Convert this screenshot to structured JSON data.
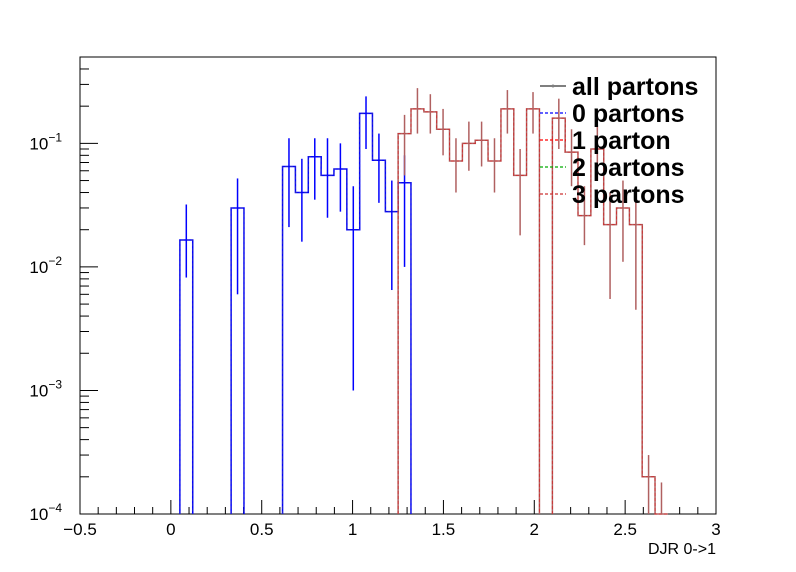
{
  "chart_data": {
    "type": "line",
    "title": "",
    "xlabel": "DJR 0->1",
    "ylabel": "",
    "xlim": [
      -0.5,
      3
    ],
    "ylim": [
      0.0001,
      0.5
    ],
    "yscale": "log",
    "bin_width": 0.0707,
    "x_ticks": [
      "−0.5",
      "0",
      "0.5",
      "1",
      "1.5",
      "2",
      "2.5",
      "3"
    ],
    "y_ticks": [
      {
        "mantissa": "10",
        "exp": "−4",
        "value": 0.0001
      },
      {
        "mantissa": "10",
        "exp": "−3",
        "value": 0.001
      },
      {
        "mantissa": "10",
        "exp": "−2",
        "value": 0.01
      },
      {
        "mantissa": "10",
        "exp": "−1",
        "value": 0.1
      }
    ],
    "legend_position": "top-right",
    "legend": [
      {
        "name": "all partons",
        "color": "#7f7f7f",
        "style": "solid"
      },
      {
        "name": "0 partons",
        "color": "#0000ff",
        "style": "dashed"
      },
      {
        "name": "1 parton",
        "color": "#ff0000",
        "style": "dashed"
      },
      {
        "name": "2 partons",
        "color": "#00aa00",
        "style": "dashed"
      },
      {
        "name": "3 partons",
        "color": "#cc3333",
        "style": "dashed"
      }
    ],
    "series": [
      {
        "name": "0 partons",
        "color": "#0000ff",
        "points": [
          {
            "x": 0.085,
            "y": 0.0165,
            "lo": 0.0082,
            "hi": 0.032
          },
          {
            "x": 0.367,
            "y": 0.03,
            "lo": 0.006,
            "hi": 0.052
          },
          {
            "x": 0.65,
            "y": 0.065,
            "lo": 0.021,
            "hi": 0.11
          },
          {
            "x": 0.721,
            "y": 0.04,
            "lo": 0.016,
            "hi": 0.075
          },
          {
            "x": 0.792,
            "y": 0.078,
            "lo": 0.035,
            "hi": 0.11
          },
          {
            "x": 0.862,
            "y": 0.055,
            "lo": 0.025,
            "hi": 0.11
          },
          {
            "x": 0.933,
            "y": 0.062,
            "lo": 0.028,
            "hi": 0.1
          },
          {
            "x": 1.004,
            "y": 0.02,
            "lo": 0.001,
            "hi": 0.045
          },
          {
            "x": 1.074,
            "y": 0.175,
            "lo": 0.09,
            "hi": 0.24
          },
          {
            "x": 1.145,
            "y": 0.073,
            "lo": 0.033,
            "hi": 0.12
          },
          {
            "x": 1.216,
            "y": 0.028,
            "lo": 0.0065,
            "hi": 0.05
          },
          {
            "x": 1.286,
            "y": 0.048,
            "lo": 0.01,
            "hi": 0.08
          }
        ]
      },
      {
        "name": "all partons",
        "color": "#b06060",
        "points": [
          {
            "x": 1.286,
            "y": 0.12,
            "lo": 0.055,
            "hi": 0.17
          },
          {
            "x": 1.357,
            "y": 0.19,
            "lo": 0.12,
            "hi": 0.28
          },
          {
            "x": 1.428,
            "y": 0.18,
            "lo": 0.12,
            "hi": 0.25
          },
          {
            "x": 1.498,
            "y": 0.13,
            "lo": 0.08,
            "hi": 0.19
          },
          {
            "x": 1.569,
            "y": 0.072,
            "lo": 0.04,
            "hi": 0.11
          },
          {
            "x": 1.64,
            "y": 0.1,
            "lo": 0.06,
            "hi": 0.15
          },
          {
            "x": 1.71,
            "y": 0.106,
            "lo": 0.065,
            "hi": 0.15
          },
          {
            "x": 1.781,
            "y": 0.072,
            "lo": 0.04,
            "hi": 0.11
          },
          {
            "x": 1.852,
            "y": 0.19,
            "lo": 0.12,
            "hi": 0.27
          },
          {
            "x": 1.922,
            "y": 0.055,
            "lo": 0.018,
            "hi": 0.09
          },
          {
            "x": 1.993,
            "y": 0.19,
            "lo": 0.12,
            "hi": 0.26
          },
          {
            "x": 2.135,
            "y": 0.16,
            "lo": 0.09,
            "hi": 0.23
          },
          {
            "x": 2.205,
            "y": 0.085,
            "lo": 0.045,
            "hi": 0.13
          },
          {
            "x": 2.276,
            "y": 0.026,
            "lo": 0.015,
            "hi": 0.045
          },
          {
            "x": 2.347,
            "y": 0.09,
            "lo": 0.05,
            "hi": 0.14
          },
          {
            "x": 2.417,
            "y": 0.022,
            "lo": 0.0055,
            "hi": 0.04
          },
          {
            "x": 2.488,
            "y": 0.03,
            "lo": 0.011,
            "hi": 0.05
          },
          {
            "x": 2.559,
            "y": 0.022,
            "lo": 0.0045,
            "hi": 0.04
          },
          {
            "x": 2.629,
            "y": 0.0002,
            "lo": 0.0001,
            "hi": 0.0003
          },
          {
            "x": 2.7,
            "y": 0.0001,
            "lo": 0.0001,
            "hi": 0.00018
          }
        ]
      }
    ]
  }
}
